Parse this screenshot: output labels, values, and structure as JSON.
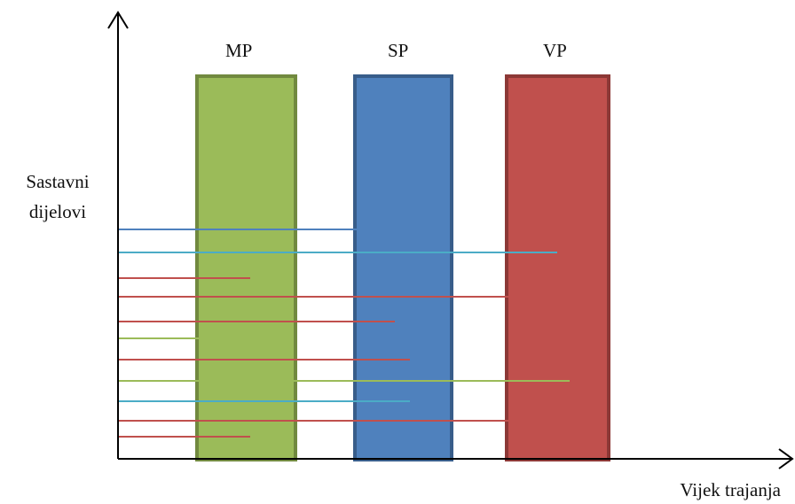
{
  "axis": {
    "y_label_line1": "Sastavni",
    "y_label_line2": "dijelovi",
    "x_label": "Vijek trajanja",
    "color": "#000000"
  },
  "bars": [
    {
      "label": "MP",
      "fill": "#9BBB59",
      "stroke": "#71893F"
    },
    {
      "label": "SP",
      "fill": "#4F81BD",
      "stroke": "#385D8A"
    },
    {
      "label": "VP",
      "fill": "#C0504D",
      "stroke": "#8C3836"
    }
  ],
  "lines": [
    {
      "color": "#4F81BD",
      "ends_in": "SP"
    },
    {
      "color": "#4BACC6",
      "ends_in": "VP"
    },
    {
      "color": "#C0504D",
      "ends_in": "MP"
    },
    {
      "color": "#C0504D",
      "ends_in": "VP"
    },
    {
      "color": "#C0504D",
      "ends_in": "SP"
    },
    {
      "color": "#9BBB59",
      "ends_in": "MP"
    },
    {
      "color": "#C0504D",
      "ends_in": "SP"
    },
    {
      "color": "#9BBB59",
      "ends_in": "VP"
    },
    {
      "color": "#4BACC6",
      "ends_in": "SP"
    },
    {
      "color": "#C0504D",
      "ends_in": "VP"
    },
    {
      "color": "#C0504D",
      "ends_in": "MP"
    }
  ]
}
